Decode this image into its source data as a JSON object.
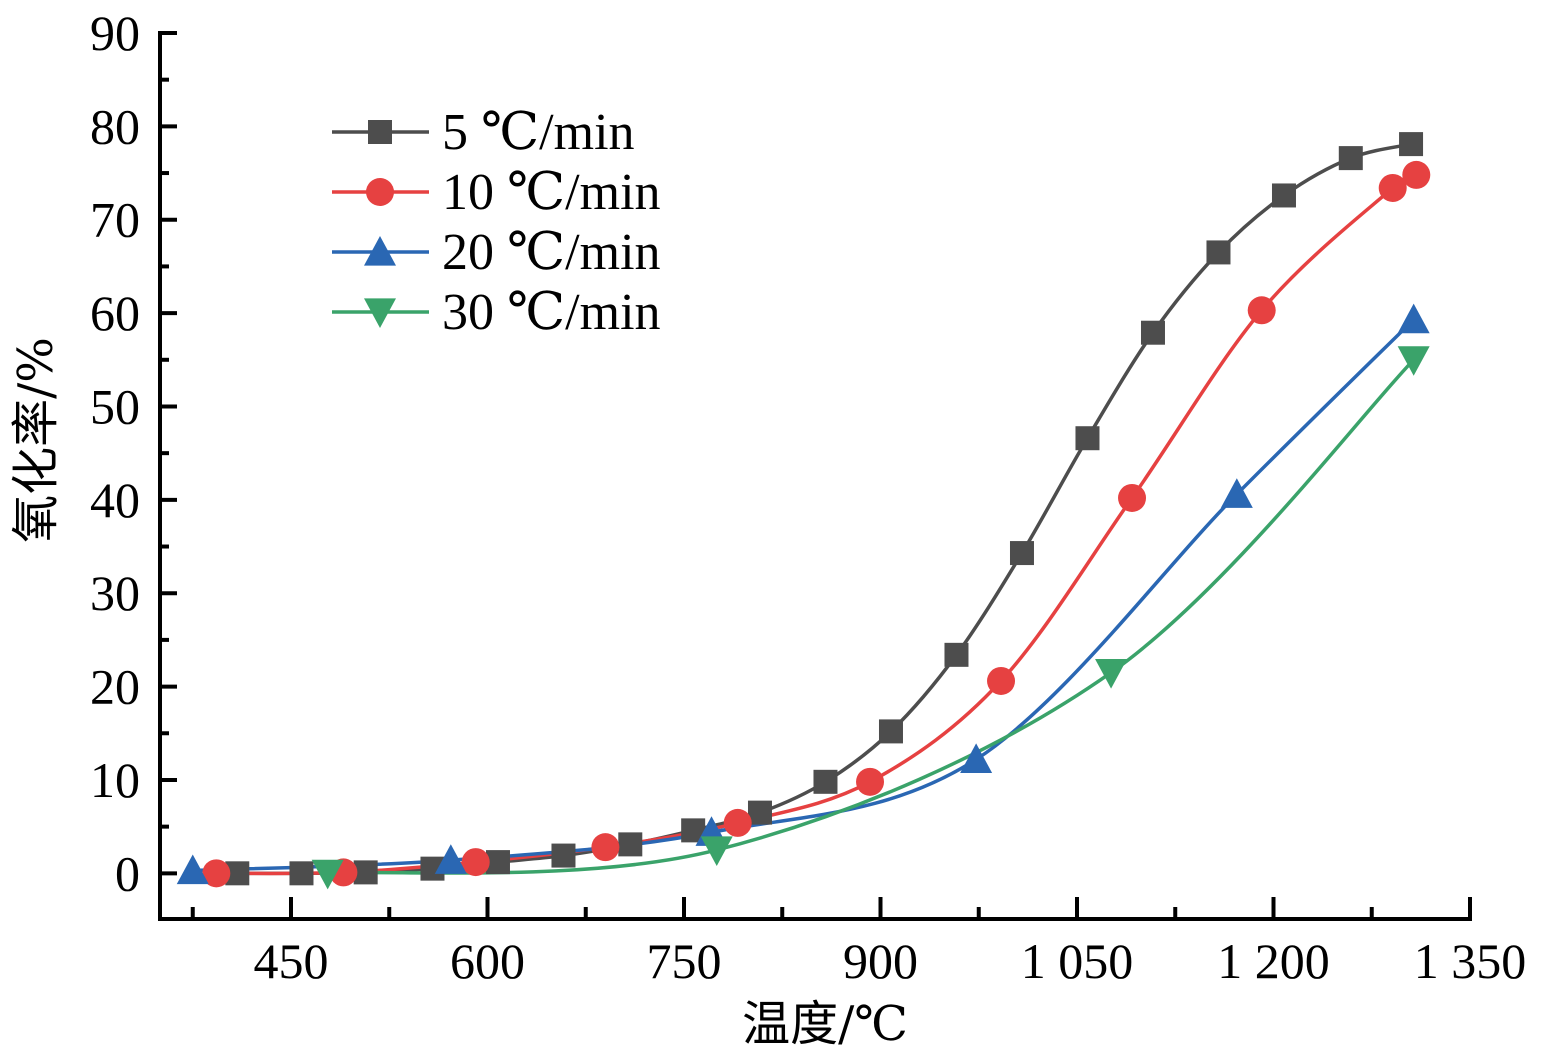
{
  "chart_data": {
    "type": "line",
    "title": "",
    "xlabel": "温度/℃",
    "ylabel": "氧化率/%",
    "xlim": [
      350,
      1350
    ],
    "ylim": [
      -5,
      90
    ],
    "x_major_ticks": [
      450,
      600,
      750,
      900,
      1050,
      1200,
      1350
    ],
    "x_tick_labels": [
      "450",
      "600",
      "750",
      "900",
      "1 050",
      "1 200",
      "1 350"
    ],
    "x_minor_ticks": [
      375,
      525,
      675,
      825,
      975,
      1125,
      1275
    ],
    "y_major_ticks": [
      0,
      10,
      20,
      30,
      40,
      50,
      60,
      70,
      80,
      90
    ],
    "y_tick_labels": [
      "0",
      "10",
      "20",
      "30",
      "40",
      "50",
      "60",
      "70",
      "80",
      "90"
    ],
    "y_minor_ticks": [
      5,
      15,
      25,
      35,
      45,
      55,
      65,
      75,
      85
    ],
    "grid": false,
    "legend_position": "top-left",
    "series": [
      {
        "name": "5 ℃/min",
        "color": "#4d4d4d",
        "marker": "square",
        "x": [
          409,
          458,
          507,
          558,
          608,
          658,
          709,
          757,
          808,
          858,
          908,
          958,
          1008,
          1058,
          1108,
          1158,
          1208,
          1259,
          1305
        ],
        "y": [
          0.0,
          0.0,
          0.1,
          0.5,
          1.2,
          1.9,
          3.1,
          4.6,
          6.5,
          9.8,
          15.2,
          23.4,
          34.3,
          46.6,
          57.9,
          66.5,
          72.6,
          76.6,
          78.1
        ]
      },
      {
        "name": "10 ℃/min",
        "color": "#e64141",
        "marker": "circle",
        "x": [
          393,
          490,
          591,
          690,
          791,
          892,
          992,
          1092,
          1191,
          1291,
          1309
        ],
        "y": [
          0.0,
          0.1,
          1.2,
          2.8,
          5.4,
          9.8,
          20.6,
          40.2,
          60.3,
          73.4,
          74.8
        ]
      },
      {
        "name": "20 ℃/min",
        "color": "#2a67b3",
        "marker": "triangle-up",
        "x": [
          375,
          572,
          771,
          973,
          1172,
          1307
        ],
        "y": [
          0.3,
          1.4,
          4.4,
          12.2,
          40.6,
          59.3
        ]
      },
      {
        "name": "30 ℃/min",
        "color": "#3aa36a",
        "marker": "triangle-down",
        "x": [
          478,
          775,
          1076,
          1307
        ],
        "y": [
          0.0,
          2.5,
          21.5,
          55.0
        ]
      }
    ]
  }
}
